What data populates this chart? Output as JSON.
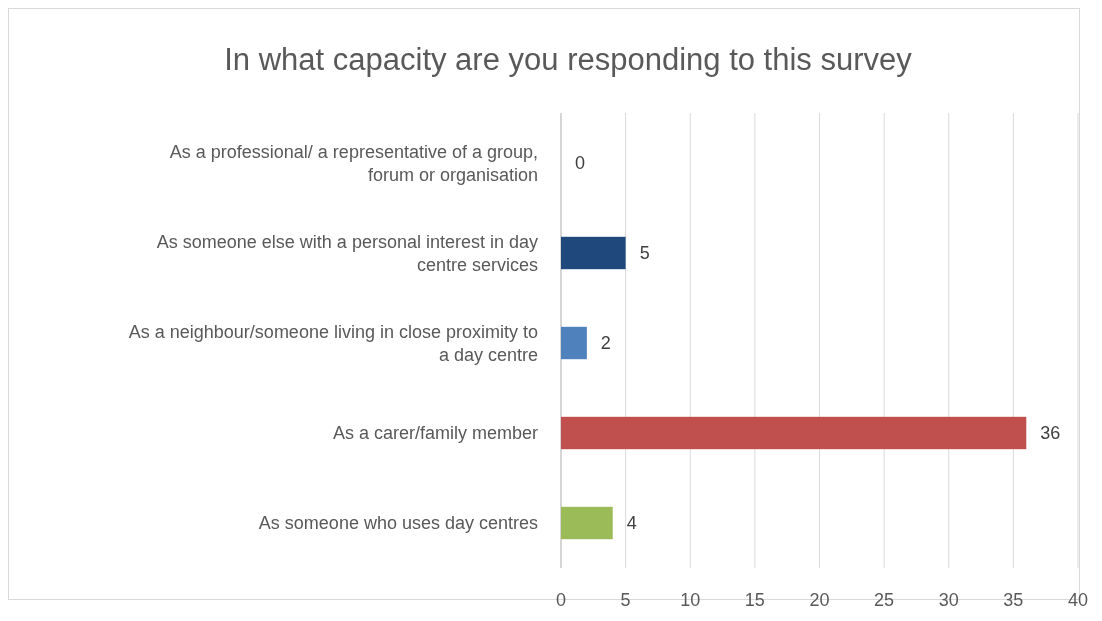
{
  "chart_data": {
    "type": "bar",
    "orientation": "horizontal",
    "title": "In what capacity are you responding to this survey",
    "categories": [
      "As a professional/ a representative of a group, forum or organisation",
      "As someone else with a personal interest in day centre services",
      "As a neighbour/someone living in close proximity to a day centre",
      "As a carer/family member",
      "As someone who uses day centres"
    ],
    "values": [
      0,
      5,
      2,
      36,
      4
    ],
    "colors": [
      "#8064a2",
      "#1f497d",
      "#4f81bd",
      "#c0504d",
      "#9bbb59"
    ],
    "xlim": [
      0,
      40
    ],
    "xticks": [
      0,
      5,
      10,
      15,
      20,
      25,
      30,
      35,
      40
    ],
    "grid": "x",
    "data_labels": true
  }
}
